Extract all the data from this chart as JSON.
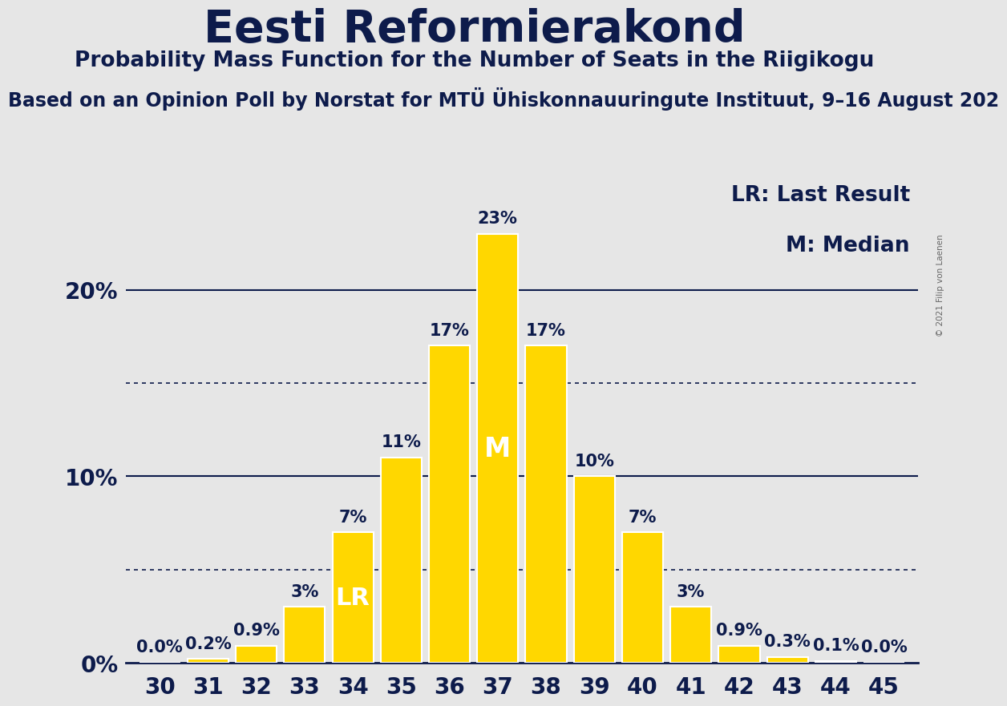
{
  "title": "Eesti Reformierakond",
  "subtitle": "Probability Mass Function for the Number of Seats in the Riigikogu",
  "source_line": "Based on an Opinion Poll by Norstat for MTÜ Ühiskonnauuringute Instituut, 9–16 August 202",
  "copyright": "© 2021 Filip von Laenen",
  "seats": [
    30,
    31,
    32,
    33,
    34,
    35,
    36,
    37,
    38,
    39,
    40,
    41,
    42,
    43,
    44,
    45
  ],
  "probabilities": [
    0.0,
    0.2,
    0.9,
    3.0,
    7.0,
    11.0,
    17.0,
    23.0,
    17.0,
    10.0,
    7.0,
    3.0,
    0.9,
    0.3,
    0.1,
    0.0
  ],
  "bar_color": "#FFD700",
  "bar_edge_color": "#FFFFFF",
  "background_color": "#E6E6E6",
  "title_color": "#0d1b4b",
  "title_fontsize": 40,
  "subtitle_fontsize": 19,
  "source_fontsize": 17,
  "label_fontsize": 15,
  "tick_fontsize": 20,
  "legend_fontsize": 19,
  "ytick_labels": [
    "0%",
    "10%",
    "20%"
  ],
  "ytick_values": [
    0,
    10,
    20
  ],
  "ylim": [
    0,
    27
  ],
  "legend_lr_seat": 34,
  "legend_m_seat": 37,
  "lr_label": "LR",
  "m_label": "M",
  "legend_text_1": "LR: Last Result",
  "legend_text_2": "M: Median",
  "dotted_line_1": 5.0,
  "dotted_line_2": 15.0
}
